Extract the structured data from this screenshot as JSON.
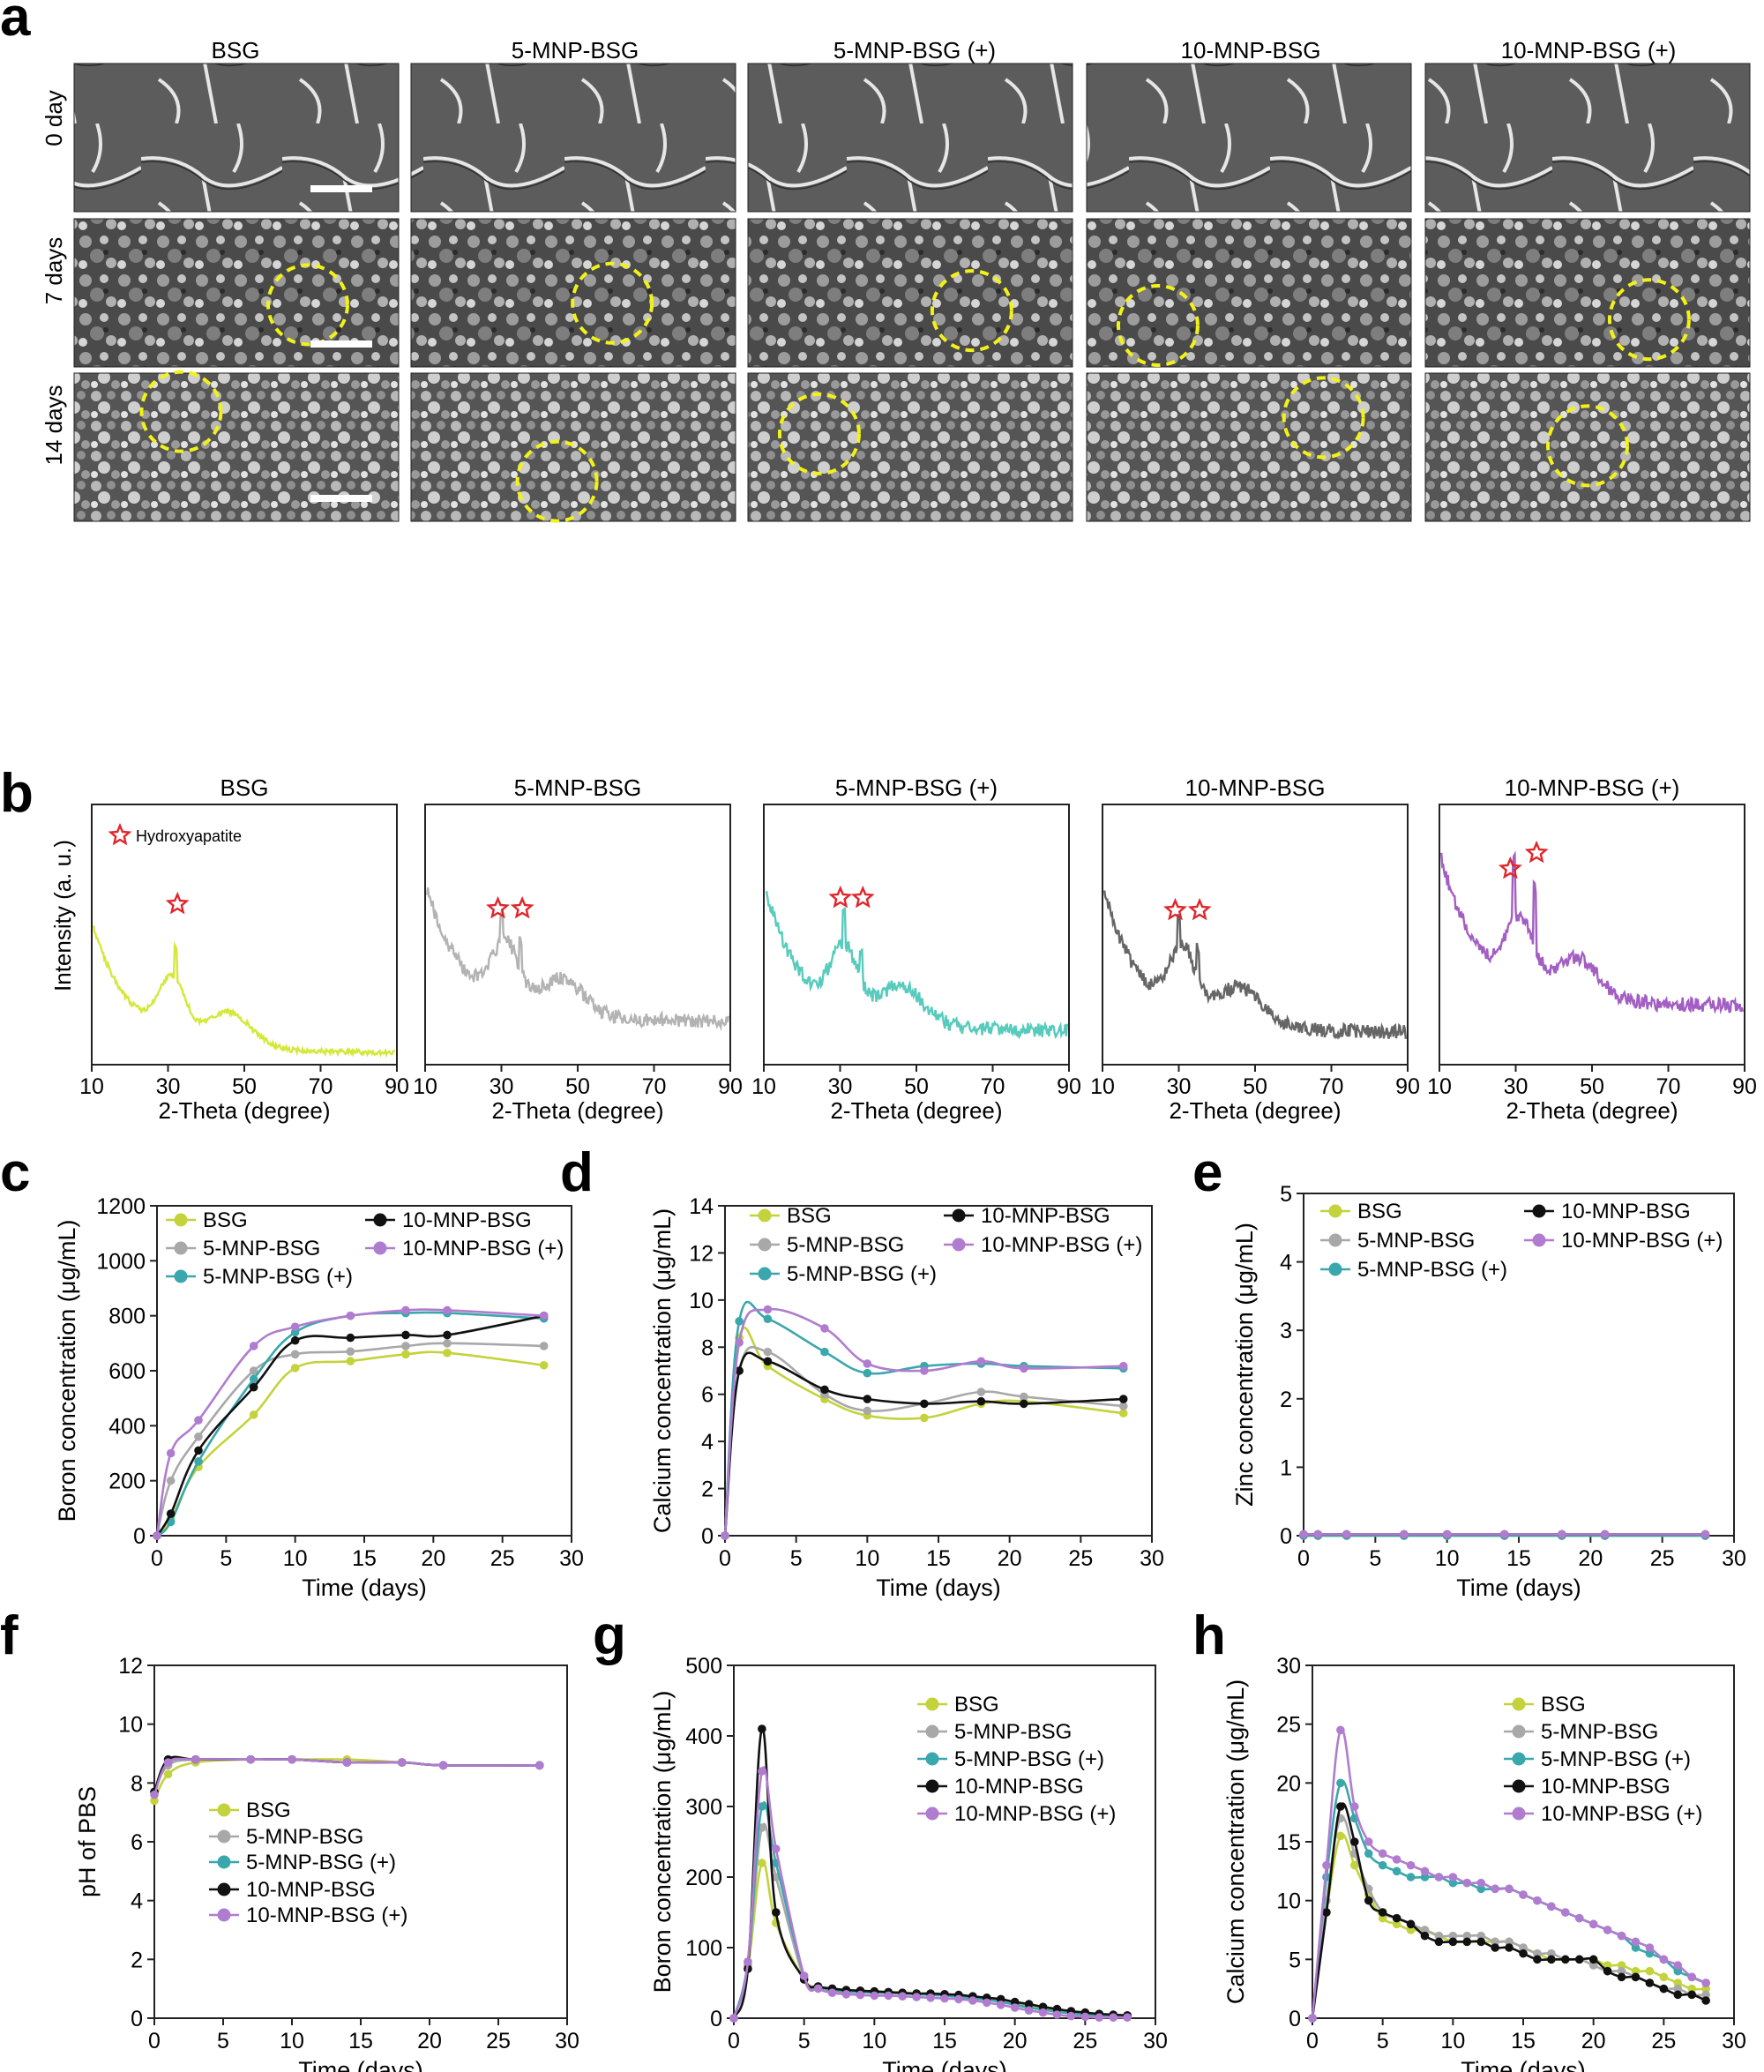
{
  "panel_letters": [
    "a",
    "b",
    "c",
    "d",
    "e",
    "f",
    "g",
    "h"
  ],
  "sem": {
    "columns": [
      "BSG",
      "5-MNP-BSG",
      "5-MNP-BSG (+)",
      "10-MNP-BSG",
      "10-MNP-BSG (+)"
    ],
    "rows": [
      "0 day",
      "7 days",
      "14 days"
    ]
  },
  "xrd": {
    "titles": [
      "BSG",
      "5-MNP-BSG",
      "5-MNP-BSG (+)",
      "10-MNP-BSG",
      "10-MNP-BSG (+)"
    ],
    "ylabel": "Intensity (a. u.)",
    "xlabel": "2-Theta (degree)",
    "legend": "Hydroxyapatite",
    "xlim": [
      10,
      90
    ],
    "xticks": [
      10,
      30,
      50,
      70,
      90
    ],
    "colors": [
      "#d4e83a",
      "#b3b3b3",
      "#58cbbd",
      "#666666",
      "#a25ec2"
    ],
    "peaks": [
      [
        32
      ],
      [
        30,
        35
      ],
      [
        31,
        35.5
      ],
      [
        30,
        35
      ],
      [
        29.5,
        35
      ]
    ]
  },
  "colors": {
    "BSG": "#c4d23c",
    "5-MNP-BSG": "#a8a8a8",
    "5-MNP-BSG (+)": "#3aa7ac",
    "10-MNP-BSG": "#111111",
    "10-MNP-BSG (+)": "#b07ccf",
    "circle": "#f2f21a",
    "star": "#e0262b"
  },
  "chart_data": [
    {
      "id": "c",
      "type": "line",
      "xlabel": "Time (days)",
      "ylabel": "Boron concentration (μg/mL)",
      "xlim": [
        0,
        30
      ],
      "ylim": [
        0,
        1200
      ],
      "xticks": [
        0,
        5,
        10,
        15,
        20,
        25,
        30
      ],
      "yticks": [
        0,
        200,
        400,
        600,
        800,
        1000,
        1200
      ],
      "x": [
        0,
        1,
        3,
        7,
        10,
        14,
        18,
        21,
        28
      ],
      "series": [
        {
          "name": "BSG",
          "values": [
            0,
            60,
            250,
            440,
            610,
            635,
            660,
            665,
            620
          ]
        },
        {
          "name": "5-MNP-BSG",
          "values": [
            0,
            200,
            360,
            600,
            660,
            670,
            690,
            700,
            690
          ]
        },
        {
          "name": "5-MNP-BSG (+)",
          "values": [
            0,
            50,
            270,
            570,
            740,
            800,
            810,
            810,
            790
          ]
        },
        {
          "name": "10-MNP-BSG",
          "values": [
            0,
            80,
            310,
            540,
            710,
            720,
            730,
            730,
            800
          ]
        },
        {
          "name": "10-MNP-BSG (+)",
          "values": [
            0,
            300,
            420,
            690,
            760,
            800,
            820,
            820,
            800
          ]
        }
      ]
    },
    {
      "id": "d",
      "type": "line",
      "xlabel": "Time (days)",
      "ylabel": "Calcium concentration (μg/mL)",
      "xlim": [
        0,
        30
      ],
      "ylim": [
        0,
        14
      ],
      "xticks": [
        0,
        5,
        10,
        15,
        20,
        25,
        30
      ],
      "yticks": [
        0,
        2,
        4,
        6,
        8,
        10,
        12,
        14
      ],
      "x": [
        0,
        1,
        3,
        7,
        10,
        14,
        18,
        21,
        28
      ],
      "series": [
        {
          "name": "BSG",
          "values": [
            0,
            8.4,
            7.2,
            5.8,
            5.1,
            5.0,
            5.6,
            5.7,
            5.2
          ]
        },
        {
          "name": "5-MNP-BSG",
          "values": [
            0,
            7.0,
            7.8,
            6.0,
            5.3,
            5.6,
            6.1,
            5.9,
            5.5
          ]
        },
        {
          "name": "5-MNP-BSG (+)",
          "values": [
            0,
            9.1,
            9.2,
            7.8,
            6.9,
            7.2,
            7.3,
            7.2,
            7.1
          ]
        },
        {
          "name": "10-MNP-BSG",
          "values": [
            0,
            7.0,
            7.4,
            6.2,
            5.8,
            5.6,
            5.7,
            5.6,
            5.8
          ]
        },
        {
          "name": "10-MNP-BSG (+)",
          "values": [
            0,
            8.2,
            9.6,
            8.8,
            7.3,
            7.0,
            7.4,
            7.1,
            7.2
          ]
        }
      ]
    },
    {
      "id": "e",
      "type": "line",
      "xlabel": "Time (days)",
      "ylabel": "Zinc concentration (μg/mL)",
      "xlim": [
        0,
        30
      ],
      "ylim": [
        0,
        5
      ],
      "xticks": [
        0,
        5,
        10,
        15,
        20,
        25,
        30
      ],
      "yticks": [
        0,
        1,
        2,
        3,
        4,
        5
      ],
      "x": [
        0,
        1,
        3,
        7,
        10,
        14,
        18,
        21,
        28
      ],
      "series": [
        {
          "name": "BSG",
          "values": [
            0,
            0,
            0,
            0,
            0,
            0,
            0,
            0,
            0
          ]
        },
        {
          "name": "5-MNP-BSG",
          "values": [
            0,
            0,
            0,
            0,
            0,
            0,
            0,
            0,
            0
          ]
        },
        {
          "name": "5-MNP-BSG (+)",
          "values": [
            0,
            0,
            0,
            0,
            0,
            0,
            0,
            0,
            0
          ]
        },
        {
          "name": "10-MNP-BSG",
          "values": [
            0.02,
            0.02,
            0.02,
            0.02,
            0.02,
            0.02,
            0.02,
            0.02,
            0.02
          ]
        },
        {
          "name": "10-MNP-BSG (+)",
          "values": [
            0.02,
            0.02,
            0.02,
            0.02,
            0.02,
            0.02,
            0.02,
            0.02,
            0.02
          ]
        }
      ]
    },
    {
      "id": "f",
      "type": "line",
      "xlabel": "Time (days)",
      "ylabel": "pH of PBS",
      "xlim": [
        0,
        30
      ],
      "ylim": [
        0,
        12
      ],
      "xticks": [
        0,
        5,
        10,
        15,
        20,
        25,
        30
      ],
      "yticks": [
        0,
        2,
        4,
        6,
        8,
        10,
        12
      ],
      "x": [
        0,
        1,
        3,
        7,
        10,
        14,
        18,
        21,
        28
      ],
      "series": [
        {
          "name": "BSG",
          "values": [
            7.4,
            8.3,
            8.7,
            8.8,
            8.8,
            8.8,
            8.7,
            8.6,
            8.6
          ]
        },
        {
          "name": "5-MNP-BSG",
          "values": [
            7.7,
            8.6,
            8.8,
            8.8,
            8.8,
            8.7,
            8.7,
            8.6,
            8.6
          ]
        },
        {
          "name": "5-MNP-BSG (+)",
          "values": [
            7.7,
            8.7,
            8.8,
            8.8,
            8.8,
            8.7,
            8.7,
            8.6,
            8.6
          ]
        },
        {
          "name": "10-MNP-BSG",
          "values": [
            7.7,
            8.8,
            8.8,
            8.8,
            8.8,
            8.7,
            8.7,
            8.6,
            8.6
          ]
        },
        {
          "name": "10-MNP-BSG (+)",
          "values": [
            7.6,
            8.7,
            8.8,
            8.8,
            8.8,
            8.7,
            8.7,
            8.6,
            8.6
          ]
        }
      ]
    },
    {
      "id": "g",
      "type": "line",
      "xlabel": "Time (days)",
      "ylabel": "Boron concentration (μg/mL)",
      "xlim": [
        0,
        30
      ],
      "ylim": [
        0,
        500
      ],
      "xticks": [
        0,
        5,
        10,
        15,
        20,
        25,
        30
      ],
      "yticks": [
        0,
        100,
        200,
        300,
        400,
        500
      ],
      "x": [
        0,
        1,
        2,
        3,
        5,
        6,
        7,
        8,
        9,
        10,
        11,
        12,
        13,
        14,
        15,
        16,
        17,
        18,
        19,
        20,
        21,
        22,
        23,
        24,
        25,
        26,
        27,
        28
      ],
      "series": [
        {
          "name": "BSG",
          "values": [
            0,
            70,
            220,
            135,
            55,
            45,
            40,
            38,
            38,
            38,
            37,
            36,
            35,
            34,
            33,
            32,
            30,
            28,
            26,
            22,
            18,
            14,
            12,
            10,
            8,
            6,
            4,
            2
          ]
        },
        {
          "name": "5-MNP-BSG",
          "values": [
            0,
            75,
            270,
            200,
            55,
            42,
            38,
            37,
            37,
            37,
            36,
            35,
            34,
            33,
            32,
            31,
            29,
            27,
            24,
            20,
            16,
            12,
            10,
            8,
            6,
            4,
            3,
            2
          ]
        },
        {
          "name": "5-MNP-BSG (+)",
          "values": [
            0,
            80,
            300,
            220,
            60,
            45,
            40,
            38,
            37,
            36,
            36,
            35,
            34,
            33,
            32,
            30,
            28,
            26,
            23,
            19,
            15,
            12,
            9,
            7,
            5,
            4,
            3,
            2
          ]
        },
        {
          "name": "10-MNP-BSG",
          "values": [
            0,
            70,
            410,
            150,
            55,
            45,
            42,
            40,
            39,
            38,
            37,
            36,
            35,
            35,
            34,
            33,
            31,
            29,
            27,
            23,
            20,
            16,
            13,
            10,
            8,
            6,
            5,
            4
          ]
        },
        {
          "name": "10-MNP-BSG (+)",
          "values": [
            0,
            80,
            350,
            240,
            60,
            42,
            36,
            34,
            33,
            32,
            32,
            31,
            30,
            29,
            28,
            27,
            25,
            22,
            19,
            15,
            11,
            8,
            5,
            3,
            2,
            1,
            1,
            1
          ]
        }
      ]
    },
    {
      "id": "h",
      "type": "line",
      "xlabel": "Time (days)",
      "ylabel": "Calcium concentration (μg/mL)",
      "xlim": [
        0,
        30
      ],
      "ylim": [
        0,
        30
      ],
      "xticks": [
        0,
        5,
        10,
        15,
        20,
        25,
        30
      ],
      "yticks": [
        0,
        5,
        10,
        15,
        20,
        25,
        30
      ],
      "x": [
        0,
        1,
        2,
        3,
        4,
        5,
        6,
        7,
        8,
        9,
        10,
        11,
        12,
        13,
        14,
        15,
        16,
        17,
        18,
        19,
        20,
        21,
        22,
        23,
        24,
        25,
        26,
        27,
        28
      ],
      "series": [
        {
          "name": "BSG",
          "values": [
            0,
            9,
            15.5,
            13,
            10.5,
            8.5,
            8.0,
            7.5,
            7.5,
            7.0,
            6.5,
            6.5,
            6.5,
            6.5,
            6.5,
            6.0,
            5.5,
            5.0,
            5.0,
            5.0,
            5.0,
            4.5,
            4.5,
            4.0,
            4.0,
            3.5,
            3.0,
            2.5,
            2.5
          ]
        },
        {
          "name": "5-MNP-BSG",
          "values": [
            0,
            10,
            17,
            14,
            11,
            9,
            8.5,
            8.0,
            7.5,
            7.0,
            7.0,
            7.0,
            7.0,
            6.5,
            6.5,
            6.0,
            5.5,
            5.5,
            5.0,
            5.0,
            4.5,
            4.0,
            4.0,
            3.5,
            3.0,
            2.5,
            2.5,
            2.0,
            2.0
          ]
        },
        {
          "name": "5-MNP-BSG (+)",
          "values": [
            0,
            12,
            20,
            17,
            14,
            13,
            12.5,
            12,
            12,
            12,
            11.5,
            11.5,
            11,
            11,
            11,
            10.5,
            10,
            9.5,
            9,
            8.5,
            8,
            7.5,
            7,
            6,
            5.5,
            5,
            4,
            3.5,
            3
          ]
        },
        {
          "name": "10-MNP-BSG",
          "values": [
            0,
            9,
            18,
            15,
            10,
            9,
            8.5,
            8.0,
            7.0,
            6.5,
            6.5,
            6.5,
            6.5,
            6.0,
            6.0,
            5.5,
            5.0,
            5.0,
            5.0,
            5.0,
            5.0,
            4.0,
            3.5,
            3.5,
            3.0,
            2.5,
            2.0,
            2.0,
            1.5
          ]
        },
        {
          "name": "10-MNP-BSG (+)",
          "values": [
            0,
            13,
            24.5,
            18,
            15,
            14,
            13.5,
            13,
            12.5,
            12,
            12,
            11.5,
            11.5,
            11,
            11,
            10.5,
            10,
            9.5,
            9,
            8.5,
            8,
            7.5,
            7,
            6.5,
            6,
            5,
            4.5,
            3.5,
            3
          ]
        }
      ]
    }
  ]
}
